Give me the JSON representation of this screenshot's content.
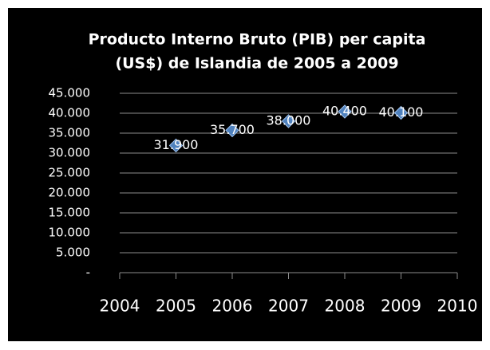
{
  "chart_data": {
    "type": "scatter",
    "title": [
      "Producto Interno Bruto (PIB) per capita",
      "(US$) de Islandia de 2005 a 2009"
    ],
    "x": [
      2005,
      2006,
      2007,
      2008,
      2009
    ],
    "values": [
      31900,
      35700,
      38000,
      40400,
      40100
    ],
    "value_labels": [
      "31.900",
      "35.700",
      "38.000",
      "40.400",
      "40.100"
    ],
    "color": "#4f81bd",
    "xlim": [
      2004,
      2010
    ],
    "xticks": [
      2004,
      2005,
      2006,
      2007,
      2008,
      2009,
      2010
    ],
    "ylim": [
      0,
      45000
    ],
    "yticks": [
      {
        "value": 0,
        "label": "-"
      },
      {
        "value": 5000,
        "label": "5.000"
      },
      {
        "value": 10000,
        "label": "10.000"
      },
      {
        "value": 15000,
        "label": "15.000"
      },
      {
        "value": 20000,
        "label": "20.000"
      },
      {
        "value": 25000,
        "label": "25.000"
      },
      {
        "value": 30000,
        "label": "30.000"
      },
      {
        "value": 35000,
        "label": "35.000"
      },
      {
        "value": 40000,
        "label": "40.000"
      },
      {
        "value": 45000,
        "label": "45.000"
      }
    ],
    "grid": true
  }
}
